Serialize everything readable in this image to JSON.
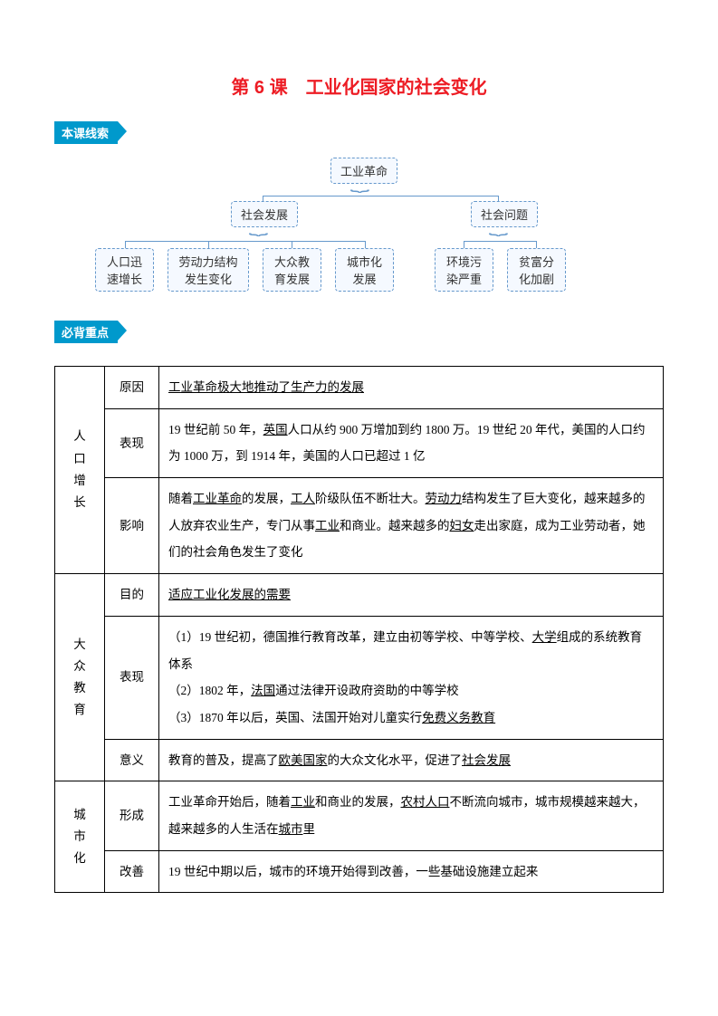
{
  "title": "第 6 课　工业化国家的社会变化",
  "section1_label": "本课线索",
  "section2_label": "必背重点",
  "diagram": {
    "root": "工业革命",
    "branch1": "社会发展",
    "branch2": "社会问题",
    "leaf1": "人口迅速增长",
    "leaf2": "劳动力结构发生变化",
    "leaf3": "大众教育发展",
    "leaf4": "城市化发展",
    "leaf5": "环境污染严重",
    "leaf6": "贫富分化加剧",
    "node_border": "#6699cc",
    "node_bg": "#f5f9ff"
  },
  "table": {
    "rows": [
      {
        "category": "人口增长",
        "subrows": [
          {
            "label": "原因",
            "content_parts": [
              {
                "t": "工业革命极大地推动了生产力的发展",
                "u": true
              }
            ]
          },
          {
            "label": "表现",
            "content_parts": [
              {
                "t": "19 世纪前 50 年，"
              },
              {
                "t": "英国",
                "u": true
              },
              {
                "t": "人口从约 900 万增加到约 1800 万。19 世纪 20 年代，美国的人口约为 1000 万，到 1914 年，美国的人口已超过 1 亿"
              }
            ]
          },
          {
            "label": "影响",
            "content_parts": [
              {
                "t": "随着"
              },
              {
                "t": "工业革命",
                "u": true
              },
              {
                "t": "的发展，"
              },
              {
                "t": "工人",
                "u": true
              },
              {
                "t": "阶级队伍不断壮大。"
              },
              {
                "t": "劳动力",
                "u": true
              },
              {
                "t": "结构发生了巨大变化，越来越多的人放弃农业生产，专门从事"
              },
              {
                "t": "工业",
                "u": true
              },
              {
                "t": "和商业。越来越多的"
              },
              {
                "t": "妇女",
                "u": true
              },
              {
                "t": "走出家庭，成为工业劳动者，她们的社会角色发生了变化"
              }
            ]
          }
        ]
      },
      {
        "category": "大众教育",
        "subrows": [
          {
            "label": "目的",
            "content_parts": [
              {
                "t": "适应工业化发展的需要",
                "u": true
              }
            ]
          },
          {
            "label": "表现",
            "content_parts": [
              {
                "t": "（1）19 世纪初，德国推行教育改革，建立由初等学校、中等学校、"
              },
              {
                "t": "大学",
                "u": true
              },
              {
                "t": "组成的系统教育体系"
              },
              {
                "br": true
              },
              {
                "t": "（2）1802 年，"
              },
              {
                "t": "法国",
                "u": true
              },
              {
                "t": "通过法律开设政府资助的中等学校"
              },
              {
                "br": true
              },
              {
                "t": "（3）1870 年以后，英国、法国开始对儿童实行"
              },
              {
                "t": "免费义务教育",
                "u": true
              }
            ]
          },
          {
            "label": "意义",
            "content_parts": [
              {
                "t": "教育的普及，提高了"
              },
              {
                "t": "欧美国家",
                "u": true
              },
              {
                "t": "的大众文化水平，促进了"
              },
              {
                "t": "社会发展",
                "u": true
              }
            ]
          }
        ]
      },
      {
        "category": "城市化",
        "subrows": [
          {
            "label": "形成",
            "content_parts": [
              {
                "t": "工业革命开始后，随着"
              },
              {
                "t": "工业",
                "u": true
              },
              {
                "t": "和商业的发展，"
              },
              {
                "t": "农村人口",
                "u": true
              },
              {
                "t": "不断流向城市，城市规模越来越大，越来越多的人生活在"
              },
              {
                "t": "城市",
                "u": true
              },
              {
                "t": "里"
              }
            ]
          },
          {
            "label": "改善",
            "content_parts": [
              {
                "t": "19 世纪中期以后，城市的环境开始得到改善，一些基础设施建立起来"
              }
            ]
          }
        ]
      }
    ]
  },
  "colors": {
    "title": "#ed1c24",
    "tag_bg": "#0099cc",
    "tag_text": "#ffffff",
    "border": "#000000"
  }
}
